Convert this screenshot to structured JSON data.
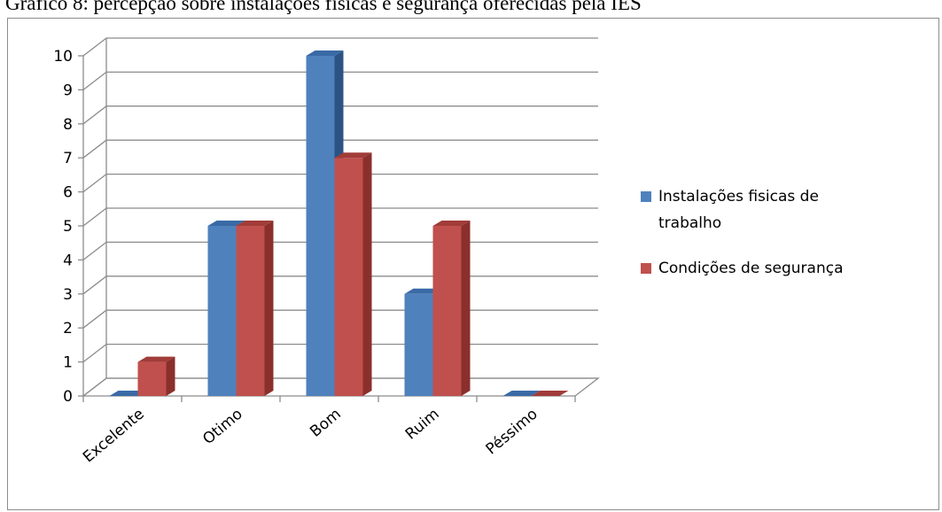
{
  "caption": "Gráfico 8: percepção sobre instalações físicas e segurança oferecidas pela IES",
  "chart_data": {
    "type": "bar",
    "categories": [
      "Excelente",
      "Otimo",
      "Bom",
      "Ruim",
      "Péssimo"
    ],
    "series": [
      {
        "name": "Instalações fisicas de trabalho",
        "values": [
          0,
          5,
          10,
          3,
          0
        ],
        "color": "#4f81bd",
        "side_color": "#2c5383",
        "top_color": "#3a6aa6"
      },
      {
        "name": "Condições de segurança",
        "values": [
          1,
          5,
          7,
          5,
          0
        ],
        "color": "#c0504d",
        "side_color": "#8a2f2c",
        "top_color": "#a13c39"
      }
    ],
    "yticks": [
      0,
      1,
      2,
      3,
      4,
      5,
      6,
      7,
      8,
      9,
      10
    ],
    "ylim": [
      0,
      10
    ],
    "grid": true,
    "legend_position": "right",
    "legend_lines": [
      [
        "Instalações fisicas de",
        "trabalho"
      ],
      [
        "Condições de segurança"
      ]
    ],
    "title": "",
    "xlabel": "",
    "ylabel": ""
  }
}
